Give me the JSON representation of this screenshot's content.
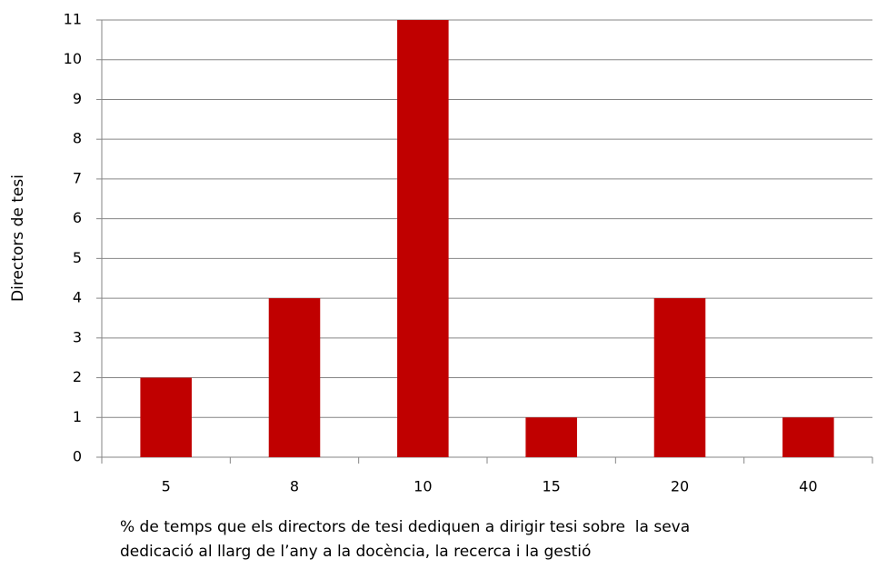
{
  "chart_data": {
    "type": "bar",
    "categories": [
      "5",
      "8",
      "10",
      "15",
      "20",
      "40"
    ],
    "values": [
      2,
      4,
      11,
      1,
      4,
      1
    ],
    "color": "#c00000",
    "ylim": [
      0,
      11
    ],
    "yticks": [
      0,
      1,
      2,
      3,
      4,
      5,
      6,
      7,
      8,
      9,
      10,
      11
    ],
    "grid": true,
    "y_label": "Directors de tesi",
    "x_label": [
      "% de temps que els directors de tesi dediquen a dirigir tesi sobre  la seva",
      "dedicació al llarg de l’any a la docència, la recerca i la gestió"
    ]
  }
}
